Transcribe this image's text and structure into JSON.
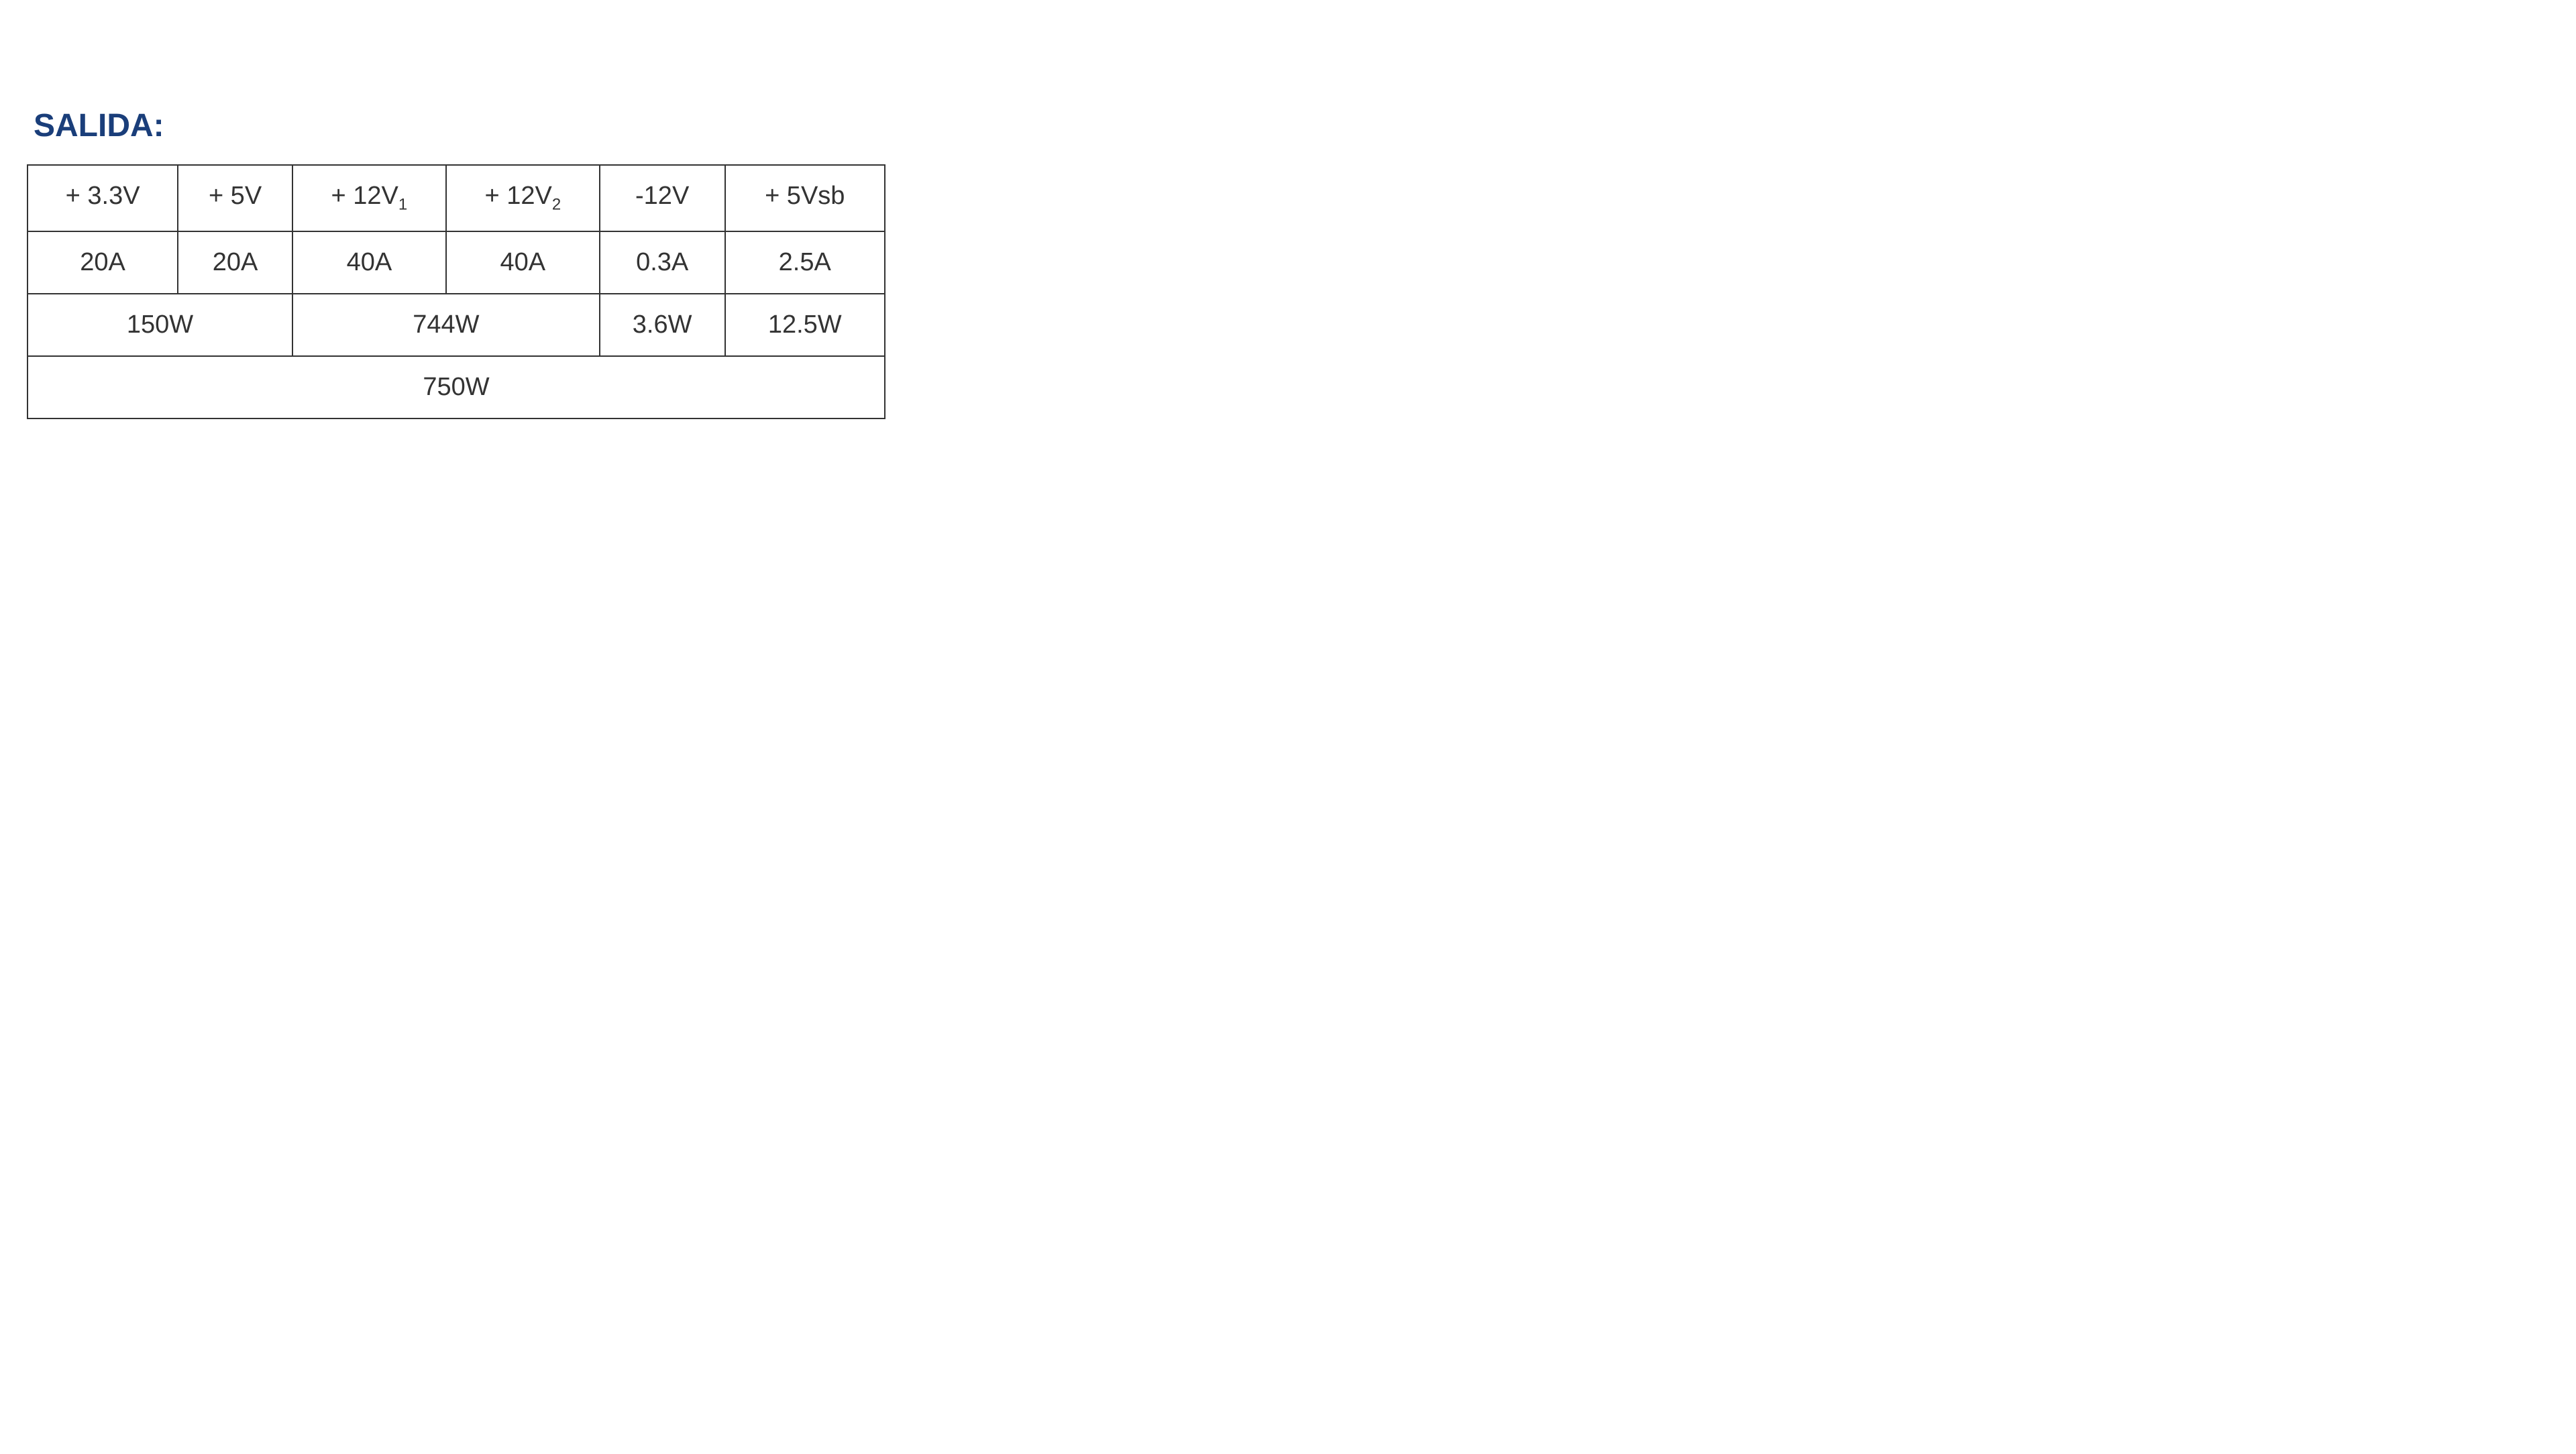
{
  "title": "SALIDA:",
  "table": {
    "border_color": "#333333",
    "text_color": "#333333",
    "title_color": "#1a3e7a",
    "background_color": "#ffffff",
    "header_fontsize": 38,
    "cell_fontsize": 38,
    "cell_padding": 24,
    "voltage_row": [
      {
        "label": "+ 3.3V",
        "sub": ""
      },
      {
        "label": "+ 5V",
        "sub": ""
      },
      {
        "label": "+ 12V",
        "sub": "1"
      },
      {
        "label": "+ 12V",
        "sub": "2"
      },
      {
        "label": "-12V",
        "sub": ""
      },
      {
        "label": "+ 5Vsb",
        "sub": ""
      }
    ],
    "current_row": [
      "20A",
      "20A",
      "40A",
      "40A",
      "0.3A",
      "2.5A"
    ],
    "wattage_row": [
      {
        "value": "150W",
        "colspan": 2
      },
      {
        "value": "744W",
        "colspan": 2
      },
      {
        "value": "3.6W",
        "colspan": 1
      },
      {
        "value": "12.5W",
        "colspan": 1
      }
    ],
    "total_row": {
      "value": "750W",
      "colspan": 6
    }
  }
}
